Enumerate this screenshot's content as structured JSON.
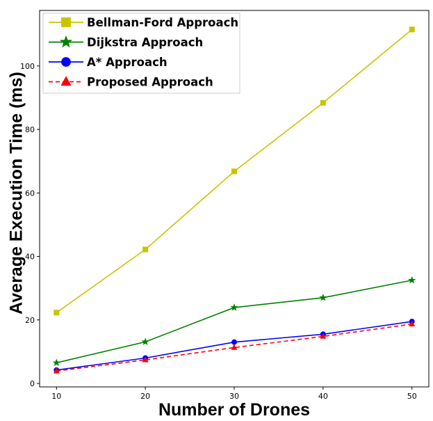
{
  "chart_data": {
    "type": "line",
    "title": "",
    "xlabel": "Number of Drones",
    "ylabel": "Average Execution Time (ms)",
    "x": [
      10,
      20,
      30,
      40,
      50
    ],
    "xlim": [
      8.1,
      51.9
    ],
    "ylim": [
      -1.1,
      117.5
    ],
    "xticks": [
      "10",
      "20",
      "30",
      "40",
      "50"
    ],
    "yticks": [
      "0",
      "20",
      "40",
      "60",
      "80",
      "100"
    ],
    "ytick_values": [
      0,
      20,
      40,
      60,
      80,
      100
    ],
    "legend_position": "upper-left",
    "series": [
      {
        "name": "Bellman-Ford Approach",
        "color": "#c8c400",
        "marker": "square",
        "linestyle": "solid",
        "values": [
          22.3,
          42.2,
          66.8,
          88.4,
          111.5
        ]
      },
      {
        "name": "Dijkstra Approach",
        "color": "#008000",
        "marker": "star",
        "linestyle": "solid",
        "values": [
          6.5,
          13.1,
          23.9,
          27.0,
          32.5
        ]
      },
      {
        "name": "A* Approach",
        "color": "#0000ff",
        "marker": "circle",
        "linestyle": "solid",
        "values": [
          4.2,
          8.0,
          13.0,
          15.5,
          19.5
        ]
      },
      {
        "name": "Proposed Approach",
        "color": "#ff0000",
        "marker": "triangle",
        "linestyle": "dashed",
        "values": [
          3.9,
          7.4,
          11.3,
          14.8,
          18.7
        ]
      }
    ]
  }
}
